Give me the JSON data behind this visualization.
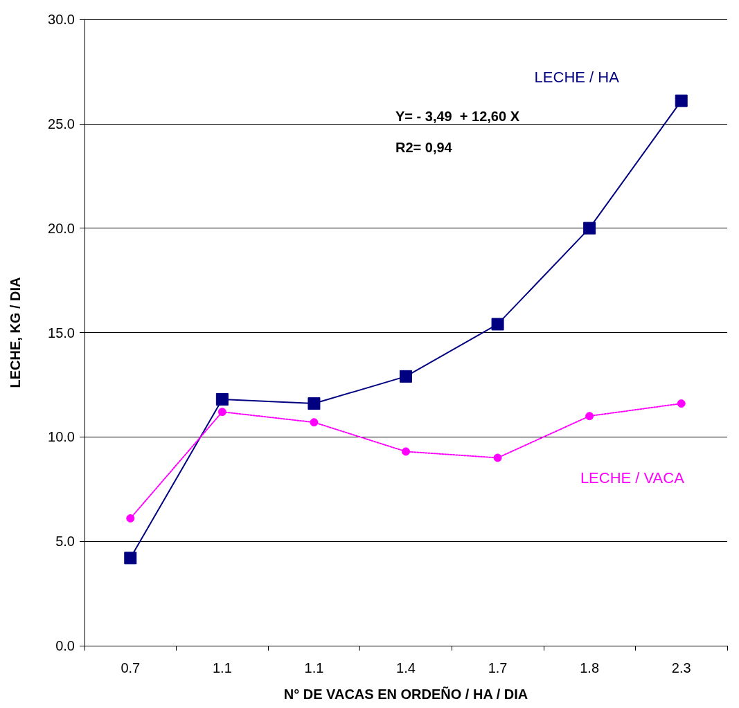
{
  "chart_data": {
    "type": "line",
    "xlabel": "N° DE VACAS EN ORDEÑO / HA / DIA",
    "ylabel": "LECHE, KG / DIA",
    "categories": [
      "0.7",
      "1.1",
      "1.1",
      "1.4",
      "1.7",
      "1.8",
      "2.3"
    ],
    "series": [
      {
        "name": "LECHE / HA",
        "color": "#000080",
        "marker": "square",
        "line_style": "solid",
        "values": [
          4.2,
          11.8,
          11.6,
          12.9,
          15.4,
          20.0,
          26.1
        ]
      },
      {
        "name": "LECHE / VACA",
        "color": "#ff00ff",
        "marker": "circle",
        "line_style": "dotted",
        "values": [
          6.1,
          11.2,
          10.7,
          9.3,
          9.0,
          11.0,
          11.6
        ]
      }
    ],
    "ylim": [
      0,
      30
    ],
    "yticks": [
      {
        "value": 0,
        "label": "0.0"
      },
      {
        "value": 5,
        "label": "5.0"
      },
      {
        "value": 10,
        "label": "10.0"
      },
      {
        "value": 15,
        "label": "15.0"
      },
      {
        "value": 20,
        "label": "20.0"
      },
      {
        "value": 25,
        "label": "25.0"
      },
      {
        "value": 30,
        "label": "30.0"
      }
    ],
    "grid": "y",
    "annotations": [
      "Y= - 3,49  + 12,60 X",
      "R2= 0,94"
    ]
  }
}
